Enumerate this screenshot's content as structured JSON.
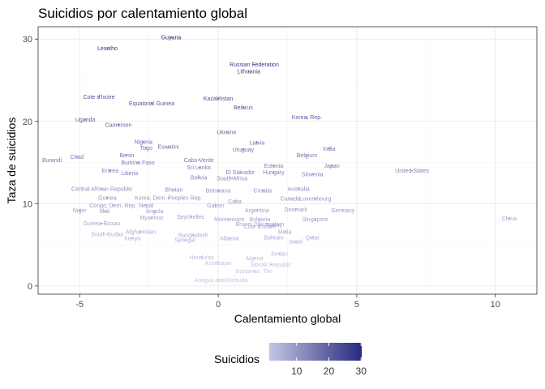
{
  "chart_data": {
    "type": "scatter",
    "title": "Suicidios por calentamiento global",
    "xlabel": "Calentamiento global",
    "ylabel": "Taza de suicidios",
    "xlim": [
      -6.5,
      11.5
    ],
    "ylim": [
      -1,
      31.5
    ],
    "x_ticks": [
      -5,
      0,
      5,
      10
    ],
    "y_ticks": [
      0,
      10,
      20,
      30
    ],
    "x_tick_labels": [
      "-5",
      "0",
      "5",
      "10"
    ],
    "y_tick_labels": [
      "0",
      "10",
      "20",
      "30"
    ],
    "grid": true,
    "color_scale": {
      "low": "#c4c6e6",
      "high": "#27297d",
      "min": 1.5,
      "max": 30.2
    },
    "legend": {
      "title": "Suicidios",
      "position": "bottom",
      "ticks": [
        10,
        20,
        30
      ],
      "tick_labels": [
        "10",
        "20",
        "30"
      ]
    },
    "points": [
      {
        "label": "Guyana",
        "x": -1.7,
        "y": 30.2
      },
      {
        "label": "Lesotho",
        "x": -4.0,
        "y": 28.9
      },
      {
        "label": "Russian Federation",
        "x": 1.3,
        "y": 26.9
      },
      {
        "label": "Lithuania",
        "x": 1.1,
        "y": 26.1
      },
      {
        "label": "Cote d'Ivoire",
        "x": -4.3,
        "y": 23.0
      },
      {
        "label": "Kazakhstan",
        "x": 0.0,
        "y": 22.8
      },
      {
        "label": "Equatorial Guinea",
        "x": -2.4,
        "y": 22.2
      },
      {
        "label": "Belarus",
        "x": 0.9,
        "y": 21.7
      },
      {
        "label": "Korea, Rep.",
        "x": 3.2,
        "y": 20.5
      },
      {
        "label": "Uganda",
        "x": -4.8,
        "y": 20.2
      },
      {
        "label": "Cameroon",
        "x": -3.6,
        "y": 19.6
      },
      {
        "label": "Ukraine",
        "x": 0.3,
        "y": 18.7
      },
      {
        "label": "Nigeria",
        "x": -2.7,
        "y": 17.5
      },
      {
        "label": "Latvia",
        "x": 1.4,
        "y": 17.4
      },
      {
        "label": "Togo",
        "x": -2.6,
        "y": 16.8
      },
      {
        "label": "Eswatini",
        "x": -1.8,
        "y": 16.9
      },
      {
        "label": "India",
        "x": 4.0,
        "y": 16.7
      },
      {
        "label": "Uruguay",
        "x": 0.9,
        "y": 16.6
      },
      {
        "label": "Chad",
        "x": -5.1,
        "y": 15.7
      },
      {
        "label": "Benin",
        "x": -3.3,
        "y": 15.9
      },
      {
        "label": "Belgium",
        "x": 3.2,
        "y": 15.9
      },
      {
        "label": "Burundi",
        "x": -6.0,
        "y": 15.3
      },
      {
        "label": "Burkina Faso",
        "x": -2.9,
        "y": 15.0
      },
      {
        "label": "Cabo Verde",
        "x": -0.7,
        "y": 15.3
      },
      {
        "label": "Estonia",
        "x": 2.0,
        "y": 14.6
      },
      {
        "label": "Japan",
        "x": 4.1,
        "y": 14.6
      },
      {
        "label": "Sri Lanka",
        "x": -0.7,
        "y": 14.4
      },
      {
        "label": "Eritrea",
        "x": -3.9,
        "y": 14.0
      },
      {
        "label": "El Salvador",
        "x": 0.8,
        "y": 13.8
      },
      {
        "label": "Hungary",
        "x": 2.0,
        "y": 13.8
      },
      {
        "label": "United States",
        "x": 7.0,
        "y": 14.0
      },
      {
        "label": "Liberia",
        "x": -3.2,
        "y": 13.7
      },
      {
        "label": "Slovenia",
        "x": 3.4,
        "y": 13.6
      },
      {
        "label": "Bolivia",
        "x": -0.7,
        "y": 13.2
      },
      {
        "label": "South Africa",
        "x": 0.5,
        "y": 13.1
      },
      {
        "label": "Central African Republic",
        "x": -4.2,
        "y": 11.8
      },
      {
        "label": "Bhutan",
        "x": -1.6,
        "y": 11.7
      },
      {
        "label": "Botswana",
        "x": 0.0,
        "y": 11.6
      },
      {
        "label": "Croatia",
        "x": 1.6,
        "y": 11.6
      },
      {
        "label": "Australia",
        "x": 2.9,
        "y": 11.8
      },
      {
        "label": "Guinea",
        "x": -4.0,
        "y": 10.7
      },
      {
        "label": "Korea, Dem. Peoples Rep.",
        "x": -1.8,
        "y": 10.7
      },
      {
        "label": "Cuba",
        "x": 0.6,
        "y": 10.3
      },
      {
        "label": "Canada",
        "x": 2.6,
        "y": 10.6
      },
      {
        "label": "Luxembourg",
        "x": 3.5,
        "y": 10.6
      },
      {
        "label": "Congo, Dem. Rep.",
        "x": -3.8,
        "y": 9.8
      },
      {
        "label": "Nepal",
        "x": -2.6,
        "y": 9.8
      },
      {
        "label": "Gabon",
        "x": -0.1,
        "y": 9.8
      },
      {
        "label": "Niger",
        "x": -5.0,
        "y": 9.2
      },
      {
        "label": "Mali",
        "x": -4.1,
        "y": 9.1
      },
      {
        "label": "Angola",
        "x": -2.3,
        "y": 9.1
      },
      {
        "label": "Argentina",
        "x": 1.4,
        "y": 9.2
      },
      {
        "label": "Denmark",
        "x": 2.8,
        "y": 9.3
      },
      {
        "label": "Germany",
        "x": 4.5,
        "y": 9.2
      },
      {
        "label": "Myanmar",
        "x": -2.4,
        "y": 8.3
      },
      {
        "label": "Seychelles",
        "x": -1.0,
        "y": 8.4
      },
      {
        "label": "Montenegro",
        "x": 0.4,
        "y": 8.1
      },
      {
        "label": "Bulgaria",
        "x": 1.5,
        "y": 8.1
      },
      {
        "label": "Singapore",
        "x": 3.5,
        "y": 8.1
      },
      {
        "label": "China",
        "x": 10.5,
        "y": 8.2
      },
      {
        "label": "Guinea-Bissau",
        "x": -4.2,
        "y": 7.6
      },
      {
        "label": "Cote d'Ivoire",
        "x": 1.5,
        "y": 7.2
      },
      {
        "label": "Turkey",
        "x": 2.0,
        "y": 7.4
      },
      {
        "label": "Afghanistan",
        "x": -2.8,
        "y": 6.6
      },
      {
        "label": "Malta",
        "x": 2.4,
        "y": 6.6
      },
      {
        "label": "South Sudan",
        "x": -4.0,
        "y": 6.3
      },
      {
        "label": "Bangladesh",
        "x": -0.9,
        "y": 6.2
      },
      {
        "label": "Kenya",
        "x": -3.1,
        "y": 5.8
      },
      {
        "label": "Senegal",
        "x": -1.2,
        "y": 5.6
      },
      {
        "label": "Albania",
        "x": 0.4,
        "y": 5.8
      },
      {
        "label": "Bahrain",
        "x": 2.0,
        "y": 5.9
      },
      {
        "label": "Qatar",
        "x": 3.4,
        "y": 5.9
      },
      {
        "label": "Israel",
        "x": 2.8,
        "y": 5.4
      },
      {
        "label": "Brunei Darussalam",
        "x": 1.5,
        "y": 7.5
      },
      {
        "label": "Jordan",
        "x": 2.2,
        "y": 3.9
      },
      {
        "label": "Honduras",
        "x": -0.6,
        "y": 3.5
      },
      {
        "label": "Algeria",
        "x": 1.3,
        "y": 3.4
      },
      {
        "label": "Azerbaijan",
        "x": 0.0,
        "y": 2.8
      },
      {
        "label": "Slovak Republic",
        "x": 1.9,
        "y": 2.6
      },
      {
        "label": "Bahamas, The",
        "x": 1.3,
        "y": 1.8
      },
      {
        "label": "Antigua and Barbuda",
        "x": 0.1,
        "y": 0.7
      }
    ]
  }
}
